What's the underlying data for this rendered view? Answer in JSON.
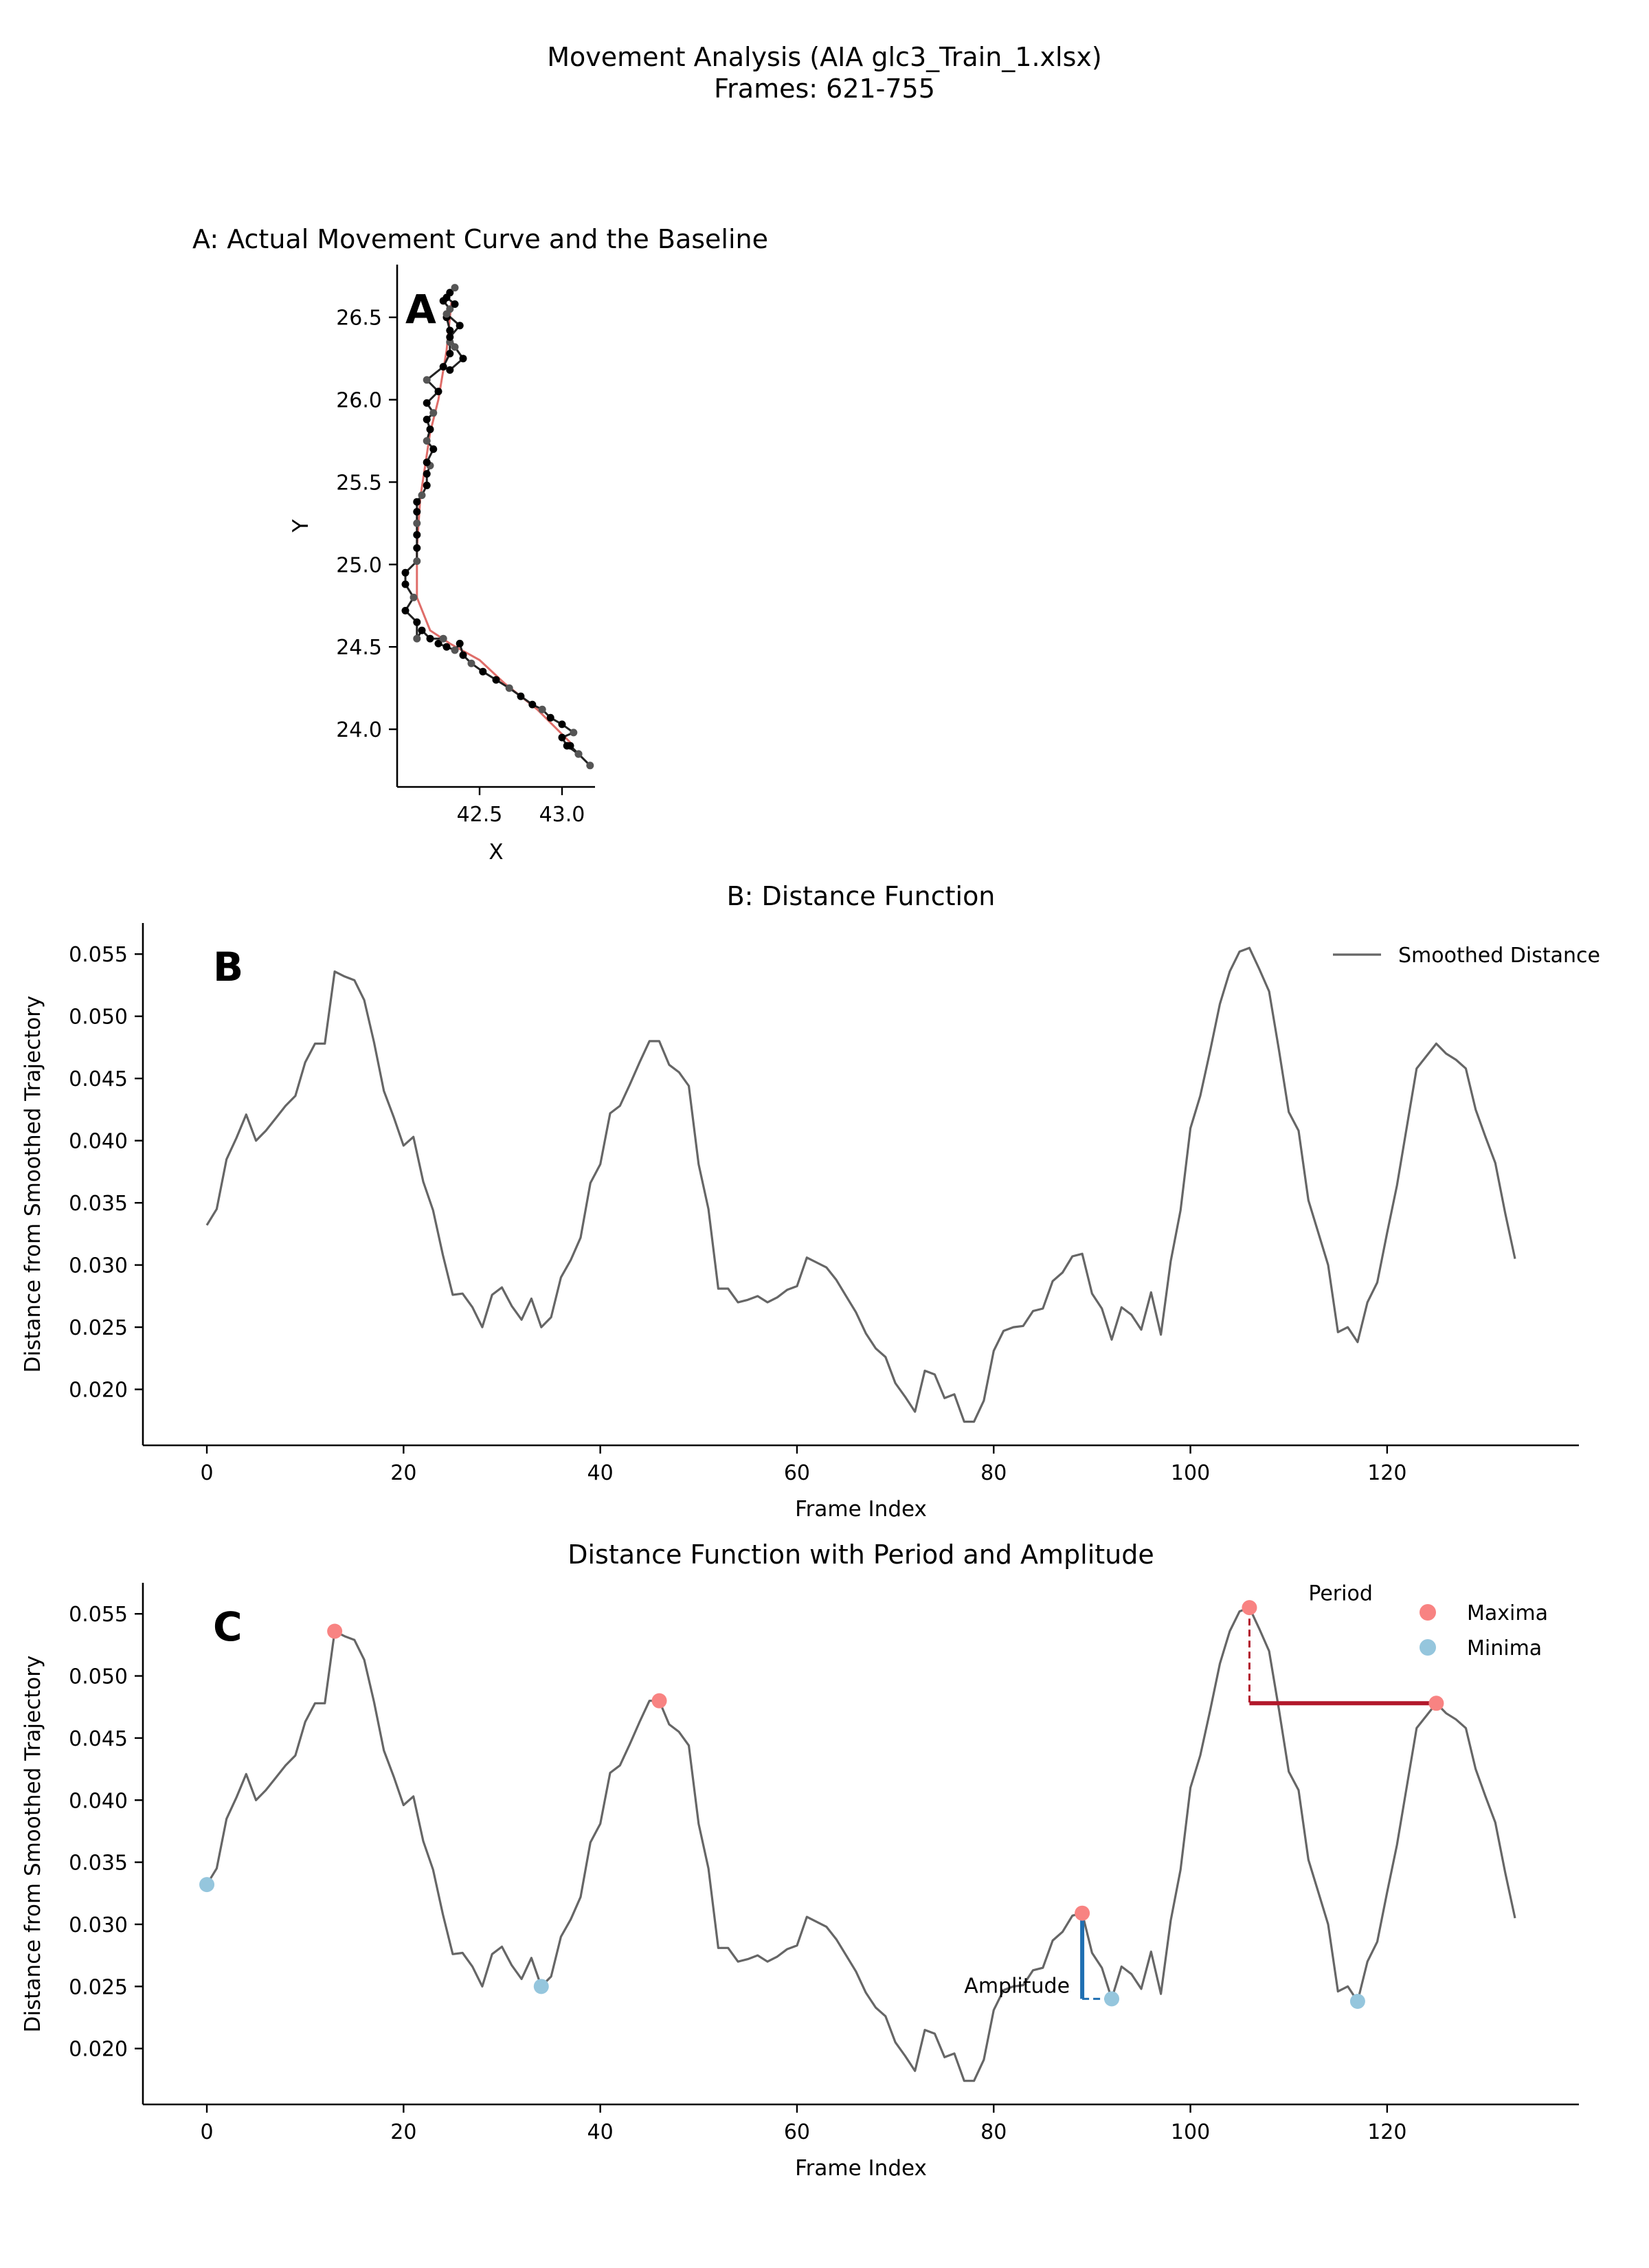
{
  "figure": {
    "suptitle_line1": "Movement Analysis (AIA glc3_Train_1.xlsx)",
    "suptitle_line2": "Frames: 621-755"
  },
  "chart_data": [
    {
      "id": "A",
      "type": "line",
      "panel_letter": "A",
      "title": "A: Actual Movement Curve and the Baseline",
      "xlabel": "X",
      "ylabel": "Y",
      "xlim": [
        42.0,
        43.2
      ],
      "ylim": [
        23.65,
        26.82
      ],
      "xticks": [
        42.5,
        43.0
      ],
      "xtick_labels": [
        "42.5",
        "43.0"
      ],
      "yticks": [
        24.0,
        24.5,
        25.0,
        25.5,
        26.0,
        26.5
      ],
      "ytick_labels": [
        "24.0",
        "24.5",
        "25.0",
        "25.5",
        "26.0",
        "26.5"
      ],
      "colors": {
        "trajectory": "#000000",
        "baseline": "#d9534f"
      },
      "series": [
        {
          "role": "trajectory",
          "x": [
            43.17,
            43.1,
            43.05,
            43.1,
            43.03,
            43.0,
            43.07,
            43.0,
            42.93,
            42.88,
            42.82,
            42.75,
            42.68,
            42.6,
            42.52,
            42.45,
            42.4,
            42.38,
            42.35,
            42.3,
            42.25,
            42.28,
            42.2,
            42.15,
            42.12,
            42.12,
            42.05,
            42.1,
            42.05,
            42.05,
            42.12,
            42.12,
            42.12,
            42.12,
            42.12,
            42.12,
            42.15,
            42.18,
            42.18,
            42.2,
            42.18,
            42.22,
            42.18,
            42.2,
            42.18,
            42.22,
            42.18,
            42.25,
            42.18,
            42.28,
            42.32,
            42.32,
            42.32,
            42.3,
            42.32,
            42.28,
            42.32,
            42.35,
            42.3,
            42.35,
            42.3,
            42.38,
            42.32,
            42.35,
            42.4,
            42.32
          ],
          "y": [
            23.78,
            23.85,
            23.9,
            23.85,
            23.9,
            23.95,
            23.98,
            24.03,
            24.07,
            24.12,
            24.15,
            24.2,
            24.25,
            24.3,
            24.35,
            24.4,
            24.45,
            24.52,
            24.48,
            24.5,
            24.52,
            24.55,
            24.55,
            24.6,
            24.55,
            24.65,
            24.72,
            24.8,
            24.88,
            24.95,
            25.02,
            25.1,
            25.18,
            25.25,
            25.32,
            25.38,
            25.42,
            25.48,
            25.55,
            25.6,
            25.62,
            25.7,
            25.75,
            25.82,
            25.88,
            25.92,
            25.98,
            26.05,
            26.12,
            26.2,
            26.28,
            26.35,
            26.42,
            26.5,
            26.55,
            26.6,
            26.65,
            26.68,
            26.62,
            26.58,
            26.52,
            26.45,
            26.38,
            26.32,
            26.25,
            26.18
          ]
        },
        {
          "role": "baseline",
          "x": [
            43.05,
            42.85,
            42.65,
            42.5,
            42.32,
            42.2,
            42.12,
            42.12,
            42.14,
            42.17,
            42.2,
            42.25,
            42.3,
            42.33
          ],
          "y": [
            23.92,
            24.12,
            24.28,
            24.42,
            24.52,
            24.6,
            24.8,
            25.1,
            25.4,
            25.6,
            25.8,
            26.0,
            26.3,
            26.6
          ]
        }
      ]
    },
    {
      "id": "B",
      "type": "line",
      "panel_letter": "B",
      "title": "B: Distance Function",
      "xlabel": "Frame Index",
      "ylabel": "Distance from Smoothed Trajectory",
      "xlim": [
        -6.5,
        139.5
      ],
      "ylim": [
        0.0155,
        0.0575
      ],
      "xticks": [
        0,
        20,
        40,
        60,
        80,
        100,
        120
      ],
      "xtick_labels": [
        "0",
        "20",
        "40",
        "60",
        "80",
        "100",
        "120"
      ],
      "yticks": [
        0.02,
        0.025,
        0.03,
        0.035,
        0.04,
        0.045,
        0.05,
        0.055
      ],
      "ytick_labels": [
        "0.020",
        "0.025",
        "0.030",
        "0.035",
        "0.040",
        "0.045",
        "0.050",
        "0.055"
      ],
      "legend_position": "upper right",
      "series": [
        {
          "name": "Smoothed Distance",
          "color": "#666666",
          "x_start": 0,
          "values": [
            0.0332,
            0.0345,
            0.0385,
            0.0402,
            0.0421,
            0.04,
            0.0408,
            0.0418,
            0.0428,
            0.0436,
            0.0463,
            0.0478,
            0.0478,
            0.0536,
            0.0532,
            0.0529,
            0.0513,
            0.0479,
            0.044,
            0.0419,
            0.0396,
            0.0403,
            0.0367,
            0.0344,
            0.0308,
            0.0276,
            0.0277,
            0.0266,
            0.025,
            0.0276,
            0.0282,
            0.0267,
            0.0256,
            0.0273,
            0.025,
            0.0258,
            0.029,
            0.0304,
            0.0322,
            0.0366,
            0.0381,
            0.0422,
            0.0428,
            0.0445,
            0.0463,
            0.048,
            0.048,
            0.0461,
            0.0455,
            0.0444,
            0.0381,
            0.0345,
            0.0281,
            0.0281,
            0.027,
            0.0272,
            0.0275,
            0.027,
            0.0274,
            0.028,
            0.0283,
            0.0306,
            0.0302,
            0.0298,
            0.0288,
            0.0275,
            0.0262,
            0.0245,
            0.0233,
            0.0226,
            0.0205,
            0.0194,
            0.0182,
            0.0215,
            0.0212,
            0.0193,
            0.0196,
            0.0174,
            0.0174,
            0.0191,
            0.0231,
            0.0247,
            0.025,
            0.0251,
            0.0263,
            0.0265,
            0.0287,
            0.0294,
            0.0307,
            0.0309,
            0.0277,
            0.0265,
            0.024,
            0.0266,
            0.026,
            0.0248,
            0.0278,
            0.0244,
            0.0303,
            0.0344,
            0.041,
            0.0436,
            0.0472,
            0.051,
            0.0536,
            0.0552,
            0.0555,
            0.0538,
            0.052,
            0.0473,
            0.0423,
            0.0408,
            0.0352,
            0.0326,
            0.03,
            0.0246,
            0.025,
            0.0238,
            0.027,
            0.0286,
            0.0326,
            0.0364,
            0.0411,
            0.0458,
            0.0468,
            0.0478,
            0.047,
            0.0465,
            0.0458,
            0.0425,
            0.0403,
            0.0382,
            0.0342,
            0.0305
          ]
        }
      ]
    },
    {
      "id": "C",
      "type": "line",
      "panel_letter": "C",
      "title": "Distance Function with Period and Amplitude",
      "xlabel": "Frame Index",
      "ylabel": "Distance from Smoothed Trajectory",
      "xlim": [
        -6.5,
        139.5
      ],
      "ylim": [
        0.0155,
        0.0575
      ],
      "xticks": [
        0,
        20,
        40,
        60,
        80,
        100,
        120
      ],
      "xtick_labels": [
        "0",
        "20",
        "40",
        "60",
        "80",
        "100",
        "120"
      ],
      "yticks": [
        0.02,
        0.025,
        0.03,
        0.035,
        0.04,
        0.045,
        0.05,
        0.055
      ],
      "ytick_labels": [
        "0.020",
        "0.025",
        "0.030",
        "0.035",
        "0.040",
        "0.045",
        "0.050",
        "0.055"
      ],
      "legend_position": "upper right",
      "line_color": "#666666",
      "maxima": {
        "name": "Maxima",
        "color": "#f88382",
        "points": [
          [
            13,
            0.0536
          ],
          [
            46,
            0.048
          ],
          [
            89,
            0.0309
          ],
          [
            106,
            0.0555
          ],
          [
            125,
            0.0478
          ]
        ]
      },
      "minima": {
        "name": "Minima",
        "color": "#95c6dd",
        "points": [
          [
            0,
            0.0332
          ],
          [
            34,
            0.025
          ],
          [
            92,
            0.024
          ],
          [
            117,
            0.0238
          ]
        ]
      },
      "annotations": {
        "period": {
          "label": "Period",
          "color": "#b2182b",
          "x_from": 106,
          "x_to": 125,
          "y": 0.0478,
          "peak_y": 0.0555,
          "label_x": 112,
          "label_y": 0.0561
        },
        "amplitude": {
          "label": "Amplitude",
          "color": "#1f6fb2",
          "x": 89,
          "y_from": 0.024,
          "y_to": 0.0309,
          "x_min": 92,
          "label_x": 77,
          "label_y": 0.0245
        }
      }
    }
  ]
}
